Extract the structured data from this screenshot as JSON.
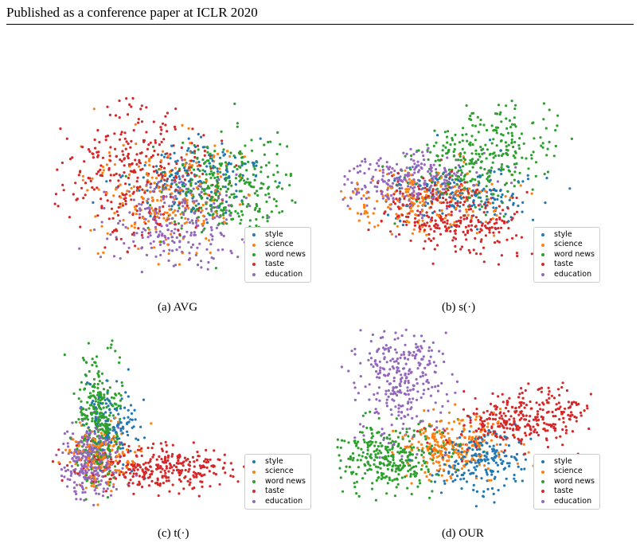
{
  "header": {
    "text": "Published as a conference paper at ICLR 2020"
  },
  "colors": {
    "style": "#1f77b4",
    "science": "#ff7f0e",
    "word news": "#2ca02c",
    "taste": "#d62728",
    "education": "#9467bd"
  },
  "chart_data": [
    {
      "type": "scatter",
      "caption": "(a) AVG",
      "legend": [
        "style",
        "science",
        "word news",
        "taste",
        "education"
      ],
      "series": [
        {
          "name": "style",
          "color": "#1f77b4",
          "n": 160,
          "mean": [
            0.55,
            0.42
          ],
          "sd": [
            0.12,
            0.1
          ],
          "rho": 0.0
        },
        {
          "name": "science",
          "color": "#ff7f0e",
          "n": 220,
          "mean": [
            0.45,
            0.5
          ],
          "sd": [
            0.14,
            0.15
          ],
          "rho": 0.0
        },
        {
          "name": "word news",
          "color": "#2ca02c",
          "n": 300,
          "mean": [
            0.68,
            0.48
          ],
          "sd": [
            0.12,
            0.13
          ],
          "rho": 0.0
        },
        {
          "name": "taste",
          "color": "#d62728",
          "n": 320,
          "mean": [
            0.33,
            0.4
          ],
          "sd": [
            0.15,
            0.17
          ],
          "rho": 0.1
        },
        {
          "name": "education",
          "color": "#9467bd",
          "n": 260,
          "mean": [
            0.5,
            0.66
          ],
          "sd": [
            0.14,
            0.12
          ],
          "rho": 0.0
        }
      ]
    },
    {
      "type": "scatter",
      "caption": "(b) s(·)",
      "legend": [
        "style",
        "science",
        "word news",
        "taste",
        "education"
      ],
      "series": [
        {
          "name": "style",
          "color": "#1f77b4",
          "n": 160,
          "mean": [
            0.48,
            0.52
          ],
          "sd": [
            0.14,
            0.08
          ],
          "rho": 0.0
        },
        {
          "name": "science",
          "color": "#ff7f0e",
          "n": 200,
          "mean": [
            0.35,
            0.55
          ],
          "sd": [
            0.15,
            0.08
          ],
          "rho": 0.0
        },
        {
          "name": "word news",
          "color": "#2ca02c",
          "n": 320,
          "mean": [
            0.55,
            0.32
          ],
          "sd": [
            0.13,
            0.14
          ],
          "rho": -0.3
        },
        {
          "name": "taste",
          "color": "#d62728",
          "n": 300,
          "mean": [
            0.45,
            0.62
          ],
          "sd": [
            0.13,
            0.1
          ],
          "rho": 0.3
        },
        {
          "name": "education",
          "color": "#9467bd",
          "n": 260,
          "mean": [
            0.28,
            0.45
          ],
          "sd": [
            0.14,
            0.08
          ],
          "rho": 0.0
        }
      ]
    },
    {
      "type": "scatter",
      "caption": "(c) t(·)",
      "legend": [
        "style",
        "science",
        "word news",
        "taste",
        "education"
      ],
      "series": [
        {
          "name": "style",
          "color": "#1f77b4",
          "n": 140,
          "mean": [
            0.25,
            0.55
          ],
          "sd": [
            0.05,
            0.12
          ],
          "rho": 0.0
        },
        {
          "name": "science",
          "color": "#ff7f0e",
          "n": 160,
          "mean": [
            0.2,
            0.72
          ],
          "sd": [
            0.06,
            0.08
          ],
          "rho": 0.0
        },
        {
          "name": "word news",
          "color": "#2ca02c",
          "n": 300,
          "mean": [
            0.2,
            0.5
          ],
          "sd": [
            0.04,
            0.18
          ],
          "rho": 0.0
        },
        {
          "name": "taste",
          "color": "#d62728",
          "n": 320,
          "mean": [
            0.42,
            0.78
          ],
          "sd": [
            0.15,
            0.06
          ],
          "rho": 0.0
        },
        {
          "name": "education",
          "color": "#9467bd",
          "n": 300,
          "mean": [
            0.16,
            0.72
          ],
          "sd": [
            0.05,
            0.1
          ],
          "rho": 0.0
        }
      ]
    },
    {
      "type": "scatter",
      "caption": "(d) OUR",
      "legend": [
        "style",
        "science",
        "word news",
        "taste",
        "education"
      ],
      "series": [
        {
          "name": "style",
          "color": "#1f77b4",
          "n": 200,
          "mean": [
            0.56,
            0.74
          ],
          "sd": [
            0.09,
            0.09
          ],
          "rho": 0.0
        },
        {
          "name": "science",
          "color": "#ff7f0e",
          "n": 240,
          "mean": [
            0.45,
            0.66
          ],
          "sd": [
            0.1,
            0.08
          ],
          "rho": 0.0
        },
        {
          "name": "word news",
          "color": "#2ca02c",
          "n": 320,
          "mean": [
            0.2,
            0.72
          ],
          "sd": [
            0.11,
            0.09
          ],
          "rho": 0.0
        },
        {
          "name": "taste",
          "color": "#d62728",
          "n": 320,
          "mean": [
            0.72,
            0.5
          ],
          "sd": [
            0.14,
            0.08
          ],
          "rho": -0.3
        },
        {
          "name": "education",
          "color": "#9467bd",
          "n": 300,
          "mean": [
            0.25,
            0.28
          ],
          "sd": [
            0.09,
            0.17
          ],
          "rho": 0.0
        }
      ]
    }
  ]
}
